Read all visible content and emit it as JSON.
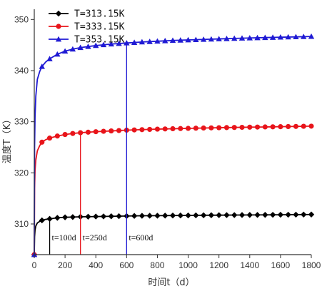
{
  "chart_data": {
    "type": "line",
    "xlabel": "时间t（d）",
    "ylabel": "温度T（K）",
    "xlim": [
      0,
      1800
    ],
    "ylim": [
      304,
      352
    ],
    "xticks": [
      0,
      200,
      400,
      600,
      800,
      1000,
      1200,
      1400,
      1600,
      1800
    ],
    "yticks": [
      310,
      320,
      330,
      340,
      350
    ],
    "grid": false,
    "legend_position": "top-left",
    "series": [
      {
        "name": "T=313.15K",
        "color": "#000000",
        "marker": "diamond",
        "x": [
          0,
          2,
          5,
          10,
          20,
          35,
          50,
          75,
          100,
          150,
          200,
          250,
          300,
          400,
          500,
          600,
          700,
          800,
          900,
          1000,
          1100,
          1200,
          1300,
          1400,
          1500,
          1600,
          1700,
          1800
        ],
        "y": [
          304,
          307.5,
          308.8,
          309.6,
          310.2,
          310.5,
          310.7,
          310.9,
          311.0,
          311.2,
          311.3,
          311.35,
          311.4,
          311.45,
          311.5,
          311.55,
          311.6,
          311.62,
          311.65,
          311.67,
          311.7,
          311.72,
          311.74,
          311.76,
          311.78,
          311.8,
          311.82,
          311.85
        ]
      },
      {
        "name": "T=333.15K",
        "color": "#e8141a",
        "marker": "circle",
        "x": [
          0,
          2,
          5,
          10,
          20,
          35,
          50,
          75,
          100,
          150,
          200,
          250,
          300,
          400,
          500,
          600,
          700,
          800,
          900,
          1000,
          1100,
          1200,
          1300,
          1400,
          1500,
          1600,
          1700,
          1800
        ],
        "y": [
          304,
          317,
          320.5,
          322.5,
          324.3,
          325.3,
          326.0,
          326.5,
          326.8,
          327.2,
          327.5,
          327.7,
          327.85,
          328.05,
          328.2,
          328.35,
          328.45,
          328.55,
          328.63,
          328.7,
          328.77,
          328.83,
          328.88,
          328.93,
          328.98,
          329.03,
          329.08,
          329.13
        ]
      },
      {
        "name": "T=353.15K",
        "color": "#1f1ad4",
        "marker": "triangle",
        "x": [
          0,
          2,
          5,
          10,
          20,
          35,
          50,
          75,
          100,
          150,
          200,
          250,
          300,
          400,
          500,
          600,
          700,
          800,
          900,
          1000,
          1100,
          1200,
          1300,
          1400,
          1500,
          1600,
          1700,
          1800
        ],
        "y": [
          304,
          325,
          331,
          335,
          338.3,
          339.8,
          340.8,
          341.7,
          342.3,
          343.2,
          343.8,
          344.2,
          344.5,
          344.9,
          345.2,
          345.4,
          345.6,
          345.75,
          345.9,
          346.0,
          346.1,
          346.2,
          346.3,
          346.38,
          346.46,
          346.53,
          346.6,
          346.68
        ]
      }
    ],
    "annotations": [
      {
        "x": 100,
        "text": "t=100d",
        "color": "#000000"
      },
      {
        "x": 300,
        "text": "t=250d",
        "color": "#e8141a"
      },
      {
        "x": 600,
        "text": "t=600d",
        "color": "#1f1ad4"
      }
    ]
  }
}
